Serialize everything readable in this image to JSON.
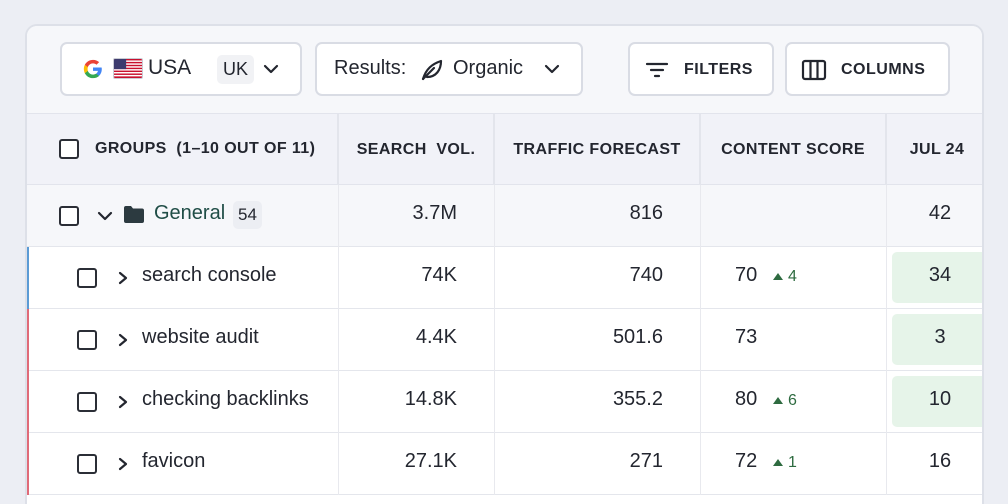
{
  "toolbar": {
    "country": {
      "label": "USA",
      "alt": "UK",
      "icon": "google-icon",
      "flag": "us-flag-icon"
    },
    "results": {
      "label": "Results:",
      "value": "Organic",
      "icon": "leaf-icon"
    },
    "filters_label": "FILTERS",
    "columns_label": "COLUMNS"
  },
  "table": {
    "headers": {
      "groups": "GROUPS  (1–10 OUT OF 11)",
      "search_vol": "SEARCH  VOL.",
      "traffic": "TRAFFIC FORECAST",
      "content": "CONTENT SCORE",
      "jul": "JUL 24"
    },
    "group": {
      "name": "General",
      "count": "54",
      "search_vol": "3.7M",
      "traffic": "816",
      "content": "",
      "jul": "42"
    },
    "rows": [
      {
        "keyword": "search console",
        "search_vol": "74K",
        "traffic": "740",
        "content": "70",
        "delta": "4",
        "jul": "34",
        "accent": "#5b9bd5",
        "jul_highlight": true
      },
      {
        "keyword": "website audit",
        "search_vol": "4.4K",
        "traffic": "501.6",
        "content": "73",
        "delta": "",
        "jul": "3",
        "accent": "#e06a78",
        "jul_highlight": true
      },
      {
        "keyword": "checking backlinks",
        "search_vol": "14.8K",
        "traffic": "355.2",
        "content": "80",
        "delta": "6",
        "jul": "10",
        "accent": "#e06a78",
        "jul_highlight": true
      },
      {
        "keyword": "favicon",
        "search_vol": "27.1K",
        "traffic": "271",
        "content": "72",
        "delta": "1",
        "jul": "16",
        "accent": "#e06a78",
        "jul_highlight": false
      }
    ]
  },
  "colors": {
    "positive": "#2e6b40",
    "highlight": "#e6f4e9"
  }
}
